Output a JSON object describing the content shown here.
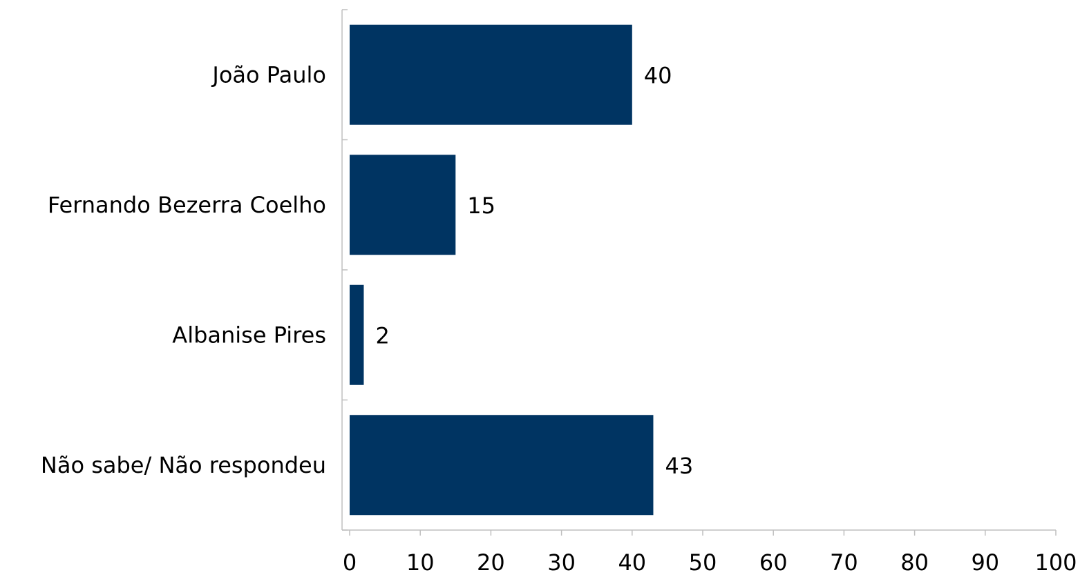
{
  "chart_data": {
    "type": "bar",
    "orientation": "horizontal",
    "categories": [
      "João Paulo",
      "Fernando Bezerra Coelho",
      "Albanise Pires",
      "Não sabe/ Não respondeu"
    ],
    "values": [
      40,
      15,
      2,
      43
    ],
    "value_labels": [
      "40",
      "15",
      "2",
      "43"
    ],
    "xlim": [
      0,
      100
    ],
    "xticks": [
      0,
      10,
      20,
      30,
      40,
      50,
      60,
      70,
      80,
      90,
      100
    ],
    "xtick_labels": [
      "0",
      "10",
      "20",
      "30",
      "40",
      "50",
      "60",
      "70",
      "80",
      "90",
      "100"
    ],
    "title": "",
    "xlabel": "",
    "ylabel": "",
    "grid": false,
    "legend": "none",
    "bar_color": "#003462"
  }
}
